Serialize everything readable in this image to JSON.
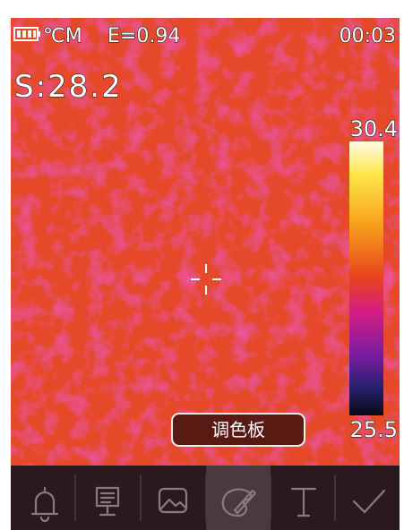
{
  "status": {
    "unit_mode": "℃M",
    "emissivity": "E=0.94",
    "time": "00:03"
  },
  "spot": "S:28.2",
  "scale": {
    "max": "30.4",
    "min": "25.5"
  },
  "tooltip": "调色板"
}
